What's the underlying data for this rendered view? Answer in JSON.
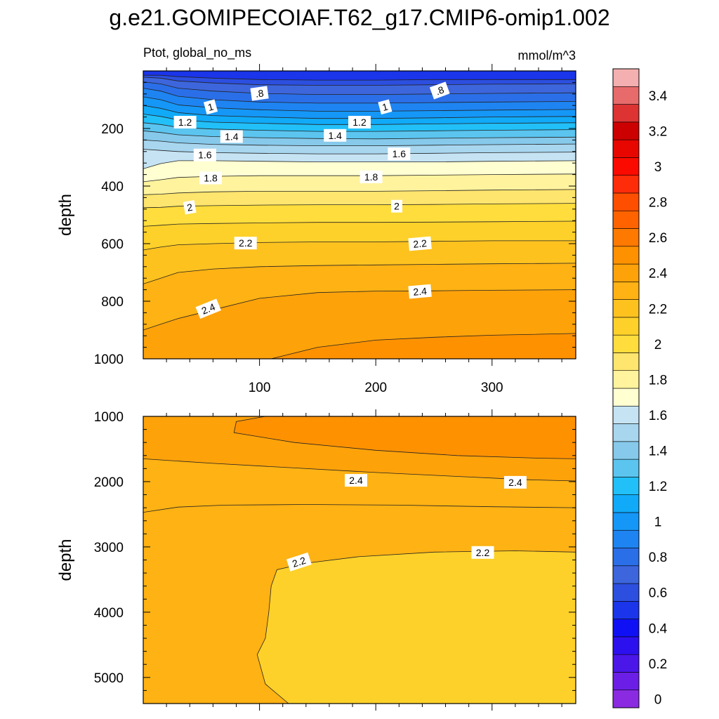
{
  "chart_data": {
    "type": "heatmap",
    "title": "g.e21.GOMIPECOIAF.T62_g17.CMIP6-omip1.002",
    "left_subtitle": "Ptot, global_no_ms",
    "right_subtitle": "mmol/m^3",
    "colorbar": {
      "levels": [
        0,
        0.1,
        0.2,
        0.3,
        0.4,
        0.5,
        0.6,
        0.7,
        0.8,
        0.9,
        1.0,
        1.1,
        1.2,
        1.3,
        1.4,
        1.5,
        1.6,
        1.7,
        1.8,
        1.9,
        2.0,
        2.1,
        2.2,
        2.3,
        2.4,
        2.5,
        2.6,
        2.7,
        2.8,
        2.9,
        3.0,
        3.1,
        3.2,
        3.3,
        3.4,
        3.5
      ],
      "colors": [
        "#8a2be2",
        "#6b1fe6",
        "#4b16e8",
        "#2d10ee",
        "#1010f5",
        "#1a35ea",
        "#2c4fe0",
        "#3d66dd",
        "#2a6fe8",
        "#1e84f2",
        "#1597f7",
        "#10aaf8",
        "#22c0f8",
        "#5bc5f0",
        "#86c9eb",
        "#a8d6ef",
        "#c5e3f3",
        "#ffffd2",
        "#fff39e",
        "#fee56e",
        "#fedd3c",
        "#fed12a",
        "#fec21f",
        "#feb213",
        "#fea20a",
        "#fe9100",
        "#fe7900",
        "#fe6300",
        "#fe4f00",
        "#fe2c08",
        "#fb0a00",
        "#e80600",
        "#cc0000",
        "#dd3333",
        "#e86b6b",
        "#f4b0b0"
      ],
      "tick_values": [
        0,
        0.2,
        0.4,
        0.6,
        0.8,
        1,
        1.2,
        1.4,
        1.6,
        1.8,
        2,
        2.2,
        2.4,
        2.6,
        2.8,
        3,
        3.2,
        3.4
      ],
      "tick_labels": [
        "0",
        "0.2",
        "0.4",
        "0.6",
        "0.8",
        "1",
        "1.2",
        "1.4",
        "1.6",
        "1.8",
        "2",
        "2.2",
        "2.4",
        "2.6",
        "2.8",
        "3",
        "3.2",
        "3.4"
      ]
    },
    "panels": [
      {
        "name": "upper-ocean",
        "xlabel": "",
        "ylabel": "depth",
        "xlim": [
          0,
          372
        ],
        "ylim": [
          1000,
          0
        ],
        "x_ticks": [
          100,
          200,
          300
        ],
        "x_tick_labels": [
          "100",
          "200",
          "300"
        ],
        "y_ticks": [
          200,
          400,
          600,
          800,
          1000
        ],
        "y_tick_labels": [
          "200",
          "400",
          "600",
          "800",
          "1000"
        ],
        "contour_levels": [
          0.6,
          0.7,
          0.8,
          0.9,
          1.0,
          1.1,
          1.2,
          1.3,
          1.4,
          1.5,
          1.6,
          1.7,
          1.8,
          1.9,
          2.0,
          2.1,
          2.2,
          2.3,
          2.4,
          2.5
        ],
        "profile": {
          "x": [
            0,
            15,
            30,
            60,
            100,
            150,
            200,
            250,
            300,
            372
          ],
          "isolines": [
            {
              "value": 0.6,
              "depths": [
                15,
                15,
                20,
                25,
                30,
                32,
                32,
                30,
                30,
                30
              ]
            },
            {
              "value": 0.7,
              "depths": [
                22,
                25,
                35,
                42,
                48,
                50,
                50,
                48,
                46,
                45
              ]
            },
            {
              "value": 0.8,
              "depths": [
                38,
                45,
                60,
                70,
                78,
                82,
                82,
                80,
                78,
                76
              ]
            },
            {
              "value": 0.9,
              "depths": [
                60,
                70,
                88,
                100,
                108,
                112,
                112,
                110,
                108,
                106
              ]
            },
            {
              "value": 1.0,
              "depths": [
                90,
                100,
                118,
                128,
                135,
                140,
                140,
                138,
                136,
                134
              ]
            },
            {
              "value": 1.1,
              "depths": [
                120,
                130,
                145,
                155,
                160,
                165,
                165,
                163,
                160,
                158
              ]
            },
            {
              "value": 1.2,
              "depths": [
                150,
                158,
                170,
                178,
                182,
                186,
                186,
                184,
                182,
                180
              ]
            },
            {
              "value": 1.3,
              "depths": [
                180,
                186,
                196,
                202,
                206,
                210,
                210,
                208,
                206,
                204
              ]
            },
            {
              "value": 1.4,
              "depths": [
                208,
                214,
                222,
                228,
                232,
                235,
                236,
                234,
                232,
                230
              ]
            },
            {
              "value": 1.5,
              "depths": [
                240,
                244,
                250,
                255,
                258,
                260,
                260,
                258,
                256,
                254
              ]
            },
            {
              "value": 1.6,
              "depths": [
                272,
                276,
                280,
                284,
                286,
                288,
                288,
                286,
                284,
                282
              ]
            },
            {
              "value": 1.7,
              "depths": [
                340,
                322,
                312,
                312,
                314,
                316,
                316,
                316,
                314,
                312
              ]
            },
            {
              "value": 1.8,
              "depths": [
                385,
                378,
                370,
                366,
                364,
                364,
                364,
                362,
                360,
                358
              ]
            },
            {
              "value": 1.9,
              "depths": [
                430,
                428,
                424,
                420,
                418,
                418,
                418,
                416,
                414,
                412
              ]
            },
            {
              "value": 2.0,
              "depths": [
                475,
                474,
                470,
                468,
                466,
                465,
                465,
                464,
                462,
                460
              ]
            },
            {
              "value": 2.1,
              "depths": [
                540,
                536,
                532,
                530,
                528,
                526,
                526,
                525,
                524,
                522
              ]
            },
            {
              "value": 2.2,
              "depths": [
                622,
                612,
                604,
                600,
                596,
                594,
                594,
                592,
                590,
                590
              ]
            },
            {
              "value": 2.3,
              "depths": [
                740,
                720,
                700,
                688,
                680,
                676,
                674,
                672,
                670,
                668
              ]
            },
            {
              "value": 2.4,
              "depths": [
                900,
                880,
                860,
                830,
                790,
                770,
                765,
                764,
                762,
                760
              ]
            },
            {
              "value": 2.5,
              "depths": [
                1200,
                1150,
                1100,
                1060,
                1010,
                960,
                935,
                925,
                918,
                912
              ]
            }
          ]
        },
        "contour_labels": [
          {
            "text": ".8",
            "x": 100,
            "y": 78,
            "angle": -8
          },
          {
            "text": ".8",
            "x": 255,
            "y": 68,
            "angle": -20
          },
          {
            "text": "1",
            "x": 58,
            "y": 125,
            "angle": -15
          },
          {
            "text": "1",
            "x": 208,
            "y": 125,
            "angle": -15
          },
          {
            "text": "1.2",
            "x": 36,
            "y": 178,
            "angle": 0
          },
          {
            "text": "1.2",
            "x": 186,
            "y": 178,
            "angle": 0
          },
          {
            "text": "1.4",
            "x": 76,
            "y": 228,
            "angle": 0
          },
          {
            "text": "1.4",
            "x": 165,
            "y": 224,
            "angle": 0
          },
          {
            "text": "1.6",
            "x": 53,
            "y": 292,
            "angle": 0
          },
          {
            "text": "1.6",
            "x": 220,
            "y": 288,
            "angle": 0
          },
          {
            "text": "1.8",
            "x": 58,
            "y": 372,
            "angle": 0
          },
          {
            "text": "1.8",
            "x": 196,
            "y": 368,
            "angle": 0
          },
          {
            "text": "2",
            "x": 40,
            "y": 474,
            "angle": -10
          },
          {
            "text": "2",
            "x": 218,
            "y": 470,
            "angle": 0
          },
          {
            "text": "2.2",
            "x": 88,
            "y": 598,
            "angle": 0
          },
          {
            "text": "2.2",
            "x": 238,
            "y": 600,
            "angle": -5
          },
          {
            "text": "2.4",
            "x": 56,
            "y": 826,
            "angle": -22
          },
          {
            "text": "2.4",
            "x": 238,
            "y": 766,
            "angle": -5
          }
        ]
      },
      {
        "name": "deep-ocean",
        "xlabel": "",
        "ylabel": "depth",
        "xlim": [
          0,
          372
        ],
        "ylim": [
          5400,
          1000
        ],
        "x_ticks": [
          100,
          200,
          300
        ],
        "x_tick_labels": [],
        "y_ticks": [
          1000,
          2000,
          3000,
          4000,
          5000
        ],
        "y_tick_labels": [
          "1000",
          "2000",
          "3000",
          "4000",
          "5000"
        ],
        "contour_levels": [
          2.2,
          2.3,
          2.4,
          2.5
        ],
        "profile": {
          "isolines": [
            {
              "value": 2.5,
              "shape": "core",
              "points": [
                [
                  105,
                  1000
                ],
                [
                  80,
                  1080
                ],
                [
                  78,
                  1250
                ],
                [
                  130,
                  1400
                ],
                [
                  200,
                  1520
                ],
                [
                  270,
                  1600
                ],
                [
                  340,
                  1640
                ],
                [
                  372,
                  1650
                ]
              ]
            },
            {
              "value": 2.4,
              "shape": "line",
              "points": [
                [
                  0,
                  1650
                ],
                [
                  60,
                  1720
                ],
                [
                  130,
                  1790
                ],
                [
                  200,
                  1860
                ],
                [
                  270,
                  1920
                ],
                [
                  330,
                  1970
                ],
                [
                  372,
                  1990
                ]
              ]
            },
            {
              "value": 2.3,
              "shape": "line",
              "points": [
                [
                  0,
                  2470
                ],
                [
                  30,
                  2390
                ],
                [
                  70,
                  2360
                ],
                [
                  140,
                  2350
                ],
                [
                  220,
                  2360
                ],
                [
                  300,
                  2385
                ],
                [
                  372,
                  2400
                ]
              ]
            },
            {
              "value": 2.2,
              "shape": "pool",
              "points": [
                [
                  125,
                  5400
                ],
                [
                  105,
                  5100
                ],
                [
                  98,
                  4650
                ],
                [
                  105,
                  4400
                ],
                [
                  108,
                  4000
                ],
                [
                  110,
                  3600
                ],
                [
                  115,
                  3350
                ],
                [
                  140,
                  3250
                ],
                [
                  185,
                  3150
                ],
                [
                  250,
                  3080
                ],
                [
                  320,
                  3060
                ],
                [
                  372,
                  3080
                ]
              ]
            }
          ]
        },
        "contour_labels": [
          {
            "text": "2.4",
            "x": 183,
            "y": 1980,
            "angle": 0
          },
          {
            "text": "2.4",
            "x": 320,
            "y": 2010,
            "angle": 0
          },
          {
            "text": "2.2",
            "x": 292,
            "y": 3085,
            "angle": 0
          },
          {
            "text": "2.2",
            "x": 134,
            "y": 3230,
            "angle": -18
          }
        ]
      }
    ]
  }
}
